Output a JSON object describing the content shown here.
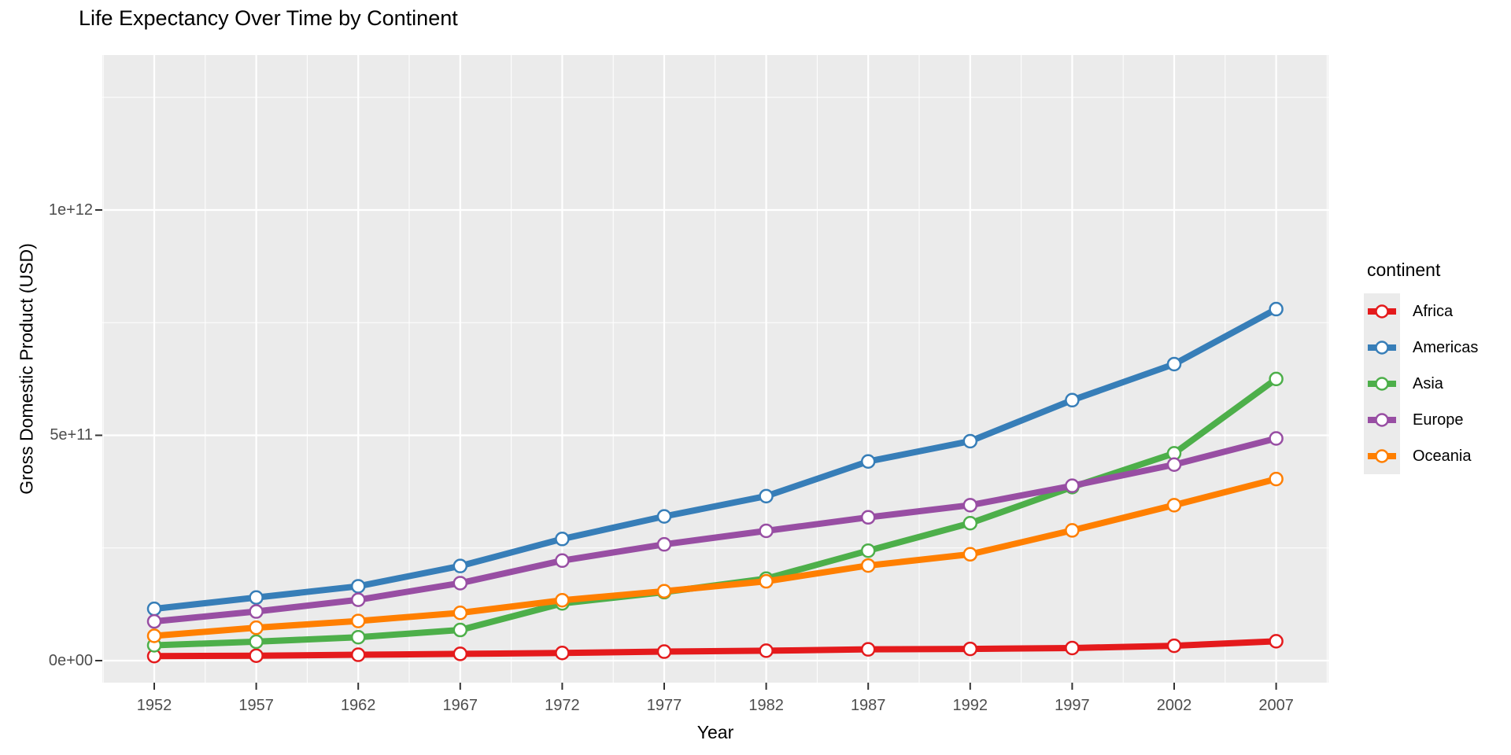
{
  "chart_data": {
    "type": "line",
    "title": "Life Expectancy Over Time by Continent",
    "xlabel": "Year",
    "ylabel": "Gross Domestic Product (USD)",
    "x": [
      1952,
      1957,
      1962,
      1967,
      1972,
      1977,
      1982,
      1987,
      1992,
      1997,
      2002,
      2007
    ],
    "y_ticks": [
      {
        "value": 0,
        "label": "0e+00"
      },
      {
        "value": 500000000000.0,
        "label": "5e+11"
      },
      {
        "value": 1000000000000.0,
        "label": "1e+12"
      }
    ],
    "y_minor_ticks": [
      250000000000.0,
      750000000000.0,
      1250000000000.0
    ],
    "ylim": [
      0,
      1345000000000.0
    ],
    "grid": true,
    "panel_background": "#EBEBEB",
    "gridline_color": "#FFFFFF",
    "tick_label_color": "#4D4D4D",
    "legend": {
      "title": "continent",
      "position": "right"
    },
    "series": [
      {
        "name": "Africa",
        "color": "#E41A1C",
        "values": [
          10000000000.0,
          11000000000.0,
          13000000000.0,
          15000000000.0,
          17000000000.0,
          20000000000.0,
          22000000000.0,
          25000000000.0,
          26000000000.0,
          28000000000.0,
          33000000000.0,
          43000000000.0
        ]
      },
      {
        "name": "Americas",
        "color": "#377EB8",
        "values": [
          115000000000.0,
          140000000000.0,
          165000000000.0,
          210000000000.0,
          270000000000.0,
          320000000000.0,
          365000000000.0,
          442000000000.0,
          487000000000.0,
          578000000000.0,
          658000000000.0,
          780000000000.0
        ]
      },
      {
        "name": "Asia",
        "color": "#4DAF4A",
        "values": [
          34000000000.0,
          42000000000.0,
          52000000000.0,
          68000000000.0,
          127000000000.0,
          152000000000.0,
          182000000000.0,
          244000000000.0,
          305000000000.0,
          385000000000.0,
          460000000000.0,
          625000000000.0
        ]
      },
      {
        "name": "Europe",
        "color": "#984EA3",
        "values": [
          87000000000.0,
          109000000000.0,
          135000000000.0,
          172000000000.0,
          222000000000.0,
          258000000000.0,
          288000000000.0,
          318000000000.0,
          345000000000.0,
          388000000000.0,
          435000000000.0,
          493000000000.0
        ]
      },
      {
        "name": "Oceania",
        "color": "#FF7F00",
        "values": [
          55000000000.0,
          73000000000.0,
          88000000000.0,
          106000000000.0,
          134000000000.0,
          154000000000.0,
          176000000000.0,
          211000000000.0,
          236000000000.0,
          289000000000.0,
          345000000000.0,
          403000000000.0
        ]
      }
    ]
  }
}
